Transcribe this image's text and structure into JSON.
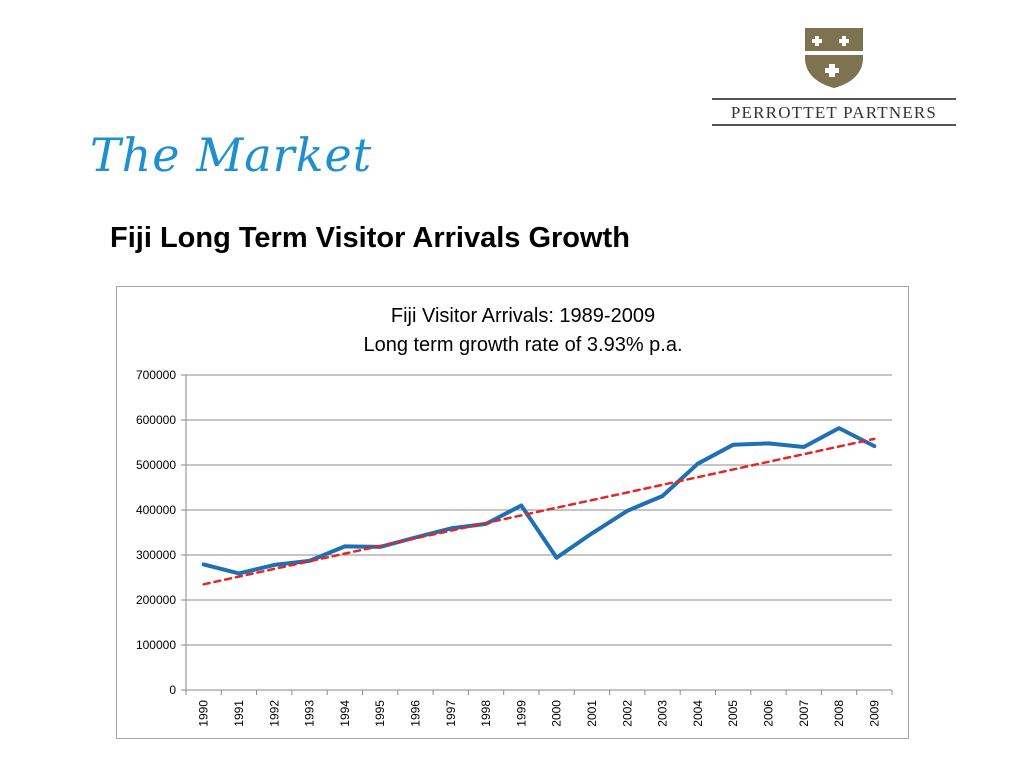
{
  "logo": {
    "name": "PERROTTET PARTNERS",
    "shield_color": "#7d7350"
  },
  "page": {
    "title": "The Market",
    "subtitle": "Fiji Long Term Visitor Arrivals Growth",
    "title_color": "#1f8fd0"
  },
  "chart_data": {
    "type": "line",
    "title": "Fiji Visitor Arrivals: 1989-2009",
    "subtitle": "Long term growth rate of 3.93% p.a.",
    "xlabel": "",
    "ylabel": "",
    "categories": [
      "1990",
      "1991",
      "1992",
      "1993",
      "1994",
      "1995",
      "1996",
      "1997",
      "1998",
      "1999",
      "2000",
      "2001",
      "2002",
      "2003",
      "2004",
      "2005",
      "2006",
      "2007",
      "2008",
      "2009"
    ],
    "series": [
      {
        "values": [
          279000,
          259000,
          278000,
          287000,
          319000,
          318000,
          339000,
          359000,
          369000,
          410000,
          294000,
          348000,
          398000,
          431000,
          503000,
          545000,
          548000,
          540000,
          582000,
          542000
        ],
        "color": "#1f6fb4",
        "style": "solid"
      },
      {
        "values": [
          235000,
          252000,
          269000,
          286000,
          303000,
          320000,
          337000,
          354000,
          371000,
          388000,
          405000,
          422000,
          439000,
          456000,
          473000,
          490000,
          507000,
          524000,
          541000,
          558000
        ],
        "color": "#e32626",
        "style": "dashed"
      }
    ],
    "ylim": [
      0,
      700000
    ],
    "yticks": [
      0,
      100000,
      200000,
      300000,
      400000,
      500000,
      600000,
      700000
    ],
    "grid": true,
    "legend": "none"
  }
}
